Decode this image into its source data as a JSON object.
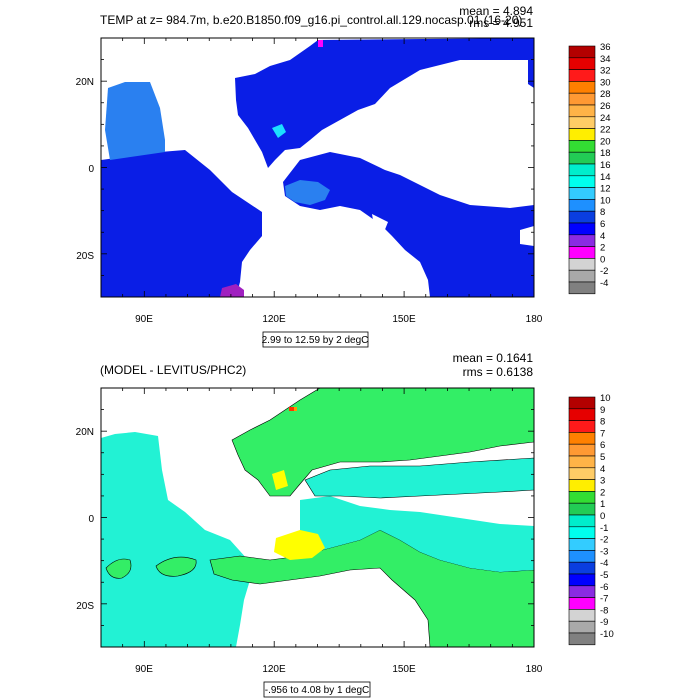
{
  "chart_data": [
    {
      "type": "heatmap",
      "title": "TEMP at z= 984.7m, b.e20.B1850.f09_g16.pi_control.all.129.nocasp.01 (16-20)",
      "stats": {
        "mean": "mean = 4.894",
        "rms": "rms = 4.951"
      },
      "x_ticks": [
        "90E",
        "120E",
        "150E",
        "180"
      ],
      "y_ticks": [
        "20N",
        "0",
        "20S"
      ],
      "xlim": [
        80,
        180
      ],
      "ylim": [
        -30,
        30
      ],
      "info_label": "2.99 to 12.59 by 2 degC",
      "colorbar_levels": [
        "36",
        "34",
        "32",
        "30",
        "28",
        "26",
        "24",
        "22",
        "20",
        "18",
        "16",
        "14",
        "12",
        "10",
        "8",
        "6",
        "4",
        "2",
        "0",
        "-2",
        "-4"
      ],
      "colorbar_colors": [
        "#b30000",
        "#e60000",
        "#ff1a1a",
        "#ff8000",
        "#ff9933",
        "#ffb347",
        "#ffcc66",
        "#ffee00",
        "#33dd33",
        "#22cc55",
        "#00eecc",
        "#00ffee",
        "#33ccff",
        "#1e90ff",
        "#0a3ee0",
        "#0000ff",
        "#8a2be2",
        "#ff00ff",
        "#d3d3d3",
        "#a9a9a9",
        "#808080"
      ],
      "region_colors": {
        "deep": "#0a1ee6",
        "mid": "#2a80f0",
        "warm": "#1ce0ff",
        "purple": "#a020c0",
        "magenta": "#ff00ff"
      }
    },
    {
      "type": "heatmap",
      "title": "(MODEL - LEVITUS/PHC2)",
      "stats": {
        "mean": "mean = 0.1641",
        "rms": "rms = 0.6138"
      },
      "x_ticks": [
        "90E",
        "120E",
        "150E",
        "180"
      ],
      "y_ticks": [
        "20N",
        "0",
        "20S"
      ],
      "xlim": [
        80,
        180
      ],
      "ylim": [
        -30,
        30
      ],
      "info_label": "-.956 to 4.08 by 1 degC",
      "colorbar_levels": [
        "10",
        "9",
        "8",
        "7",
        "6",
        "5",
        "4",
        "3",
        "2",
        "1",
        "0",
        "-1",
        "-2",
        "-3",
        "-4",
        "-5",
        "-6",
        "-7",
        "-8",
        "-9",
        "-10"
      ],
      "colorbar_colors": [
        "#b30000",
        "#e60000",
        "#ff1a1a",
        "#ff8000",
        "#ff9933",
        "#ffb347",
        "#ffcc66",
        "#ffee00",
        "#33dd33",
        "#22cc55",
        "#00eecc",
        "#00ffee",
        "#33ccff",
        "#1e90ff",
        "#0a3ee0",
        "#0000ff",
        "#8a2be2",
        "#ff00ff",
        "#d3d3d3",
        "#a9a9a9",
        "#808080"
      ],
      "region_colors": {
        "cyan": "#22f2d4",
        "green": "#33ee66",
        "lightgreen": "#66ff66",
        "yellow": "#ffff00",
        "orange": "#ff9900",
        "red": "#ff3300"
      }
    }
  ]
}
